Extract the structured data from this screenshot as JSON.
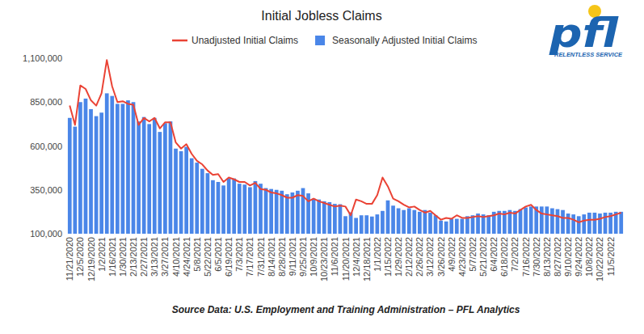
{
  "chart_data": {
    "type": "bar",
    "title": "Initial Jobless Claims",
    "caption": "Source Data: U.S. Employment and Training Administration – PFL Analytics",
    "logo": {
      "text": "pfl",
      "tagline": "RELENTLESS SERVICE"
    },
    "categories": [
      "11/21/2020",
      null,
      "12/5/2020",
      null,
      "12/19/2020",
      null,
      "1/2/2021",
      null,
      "1/16/2021",
      null,
      "1/30/2021",
      null,
      "2/13/2021",
      null,
      "2/27/2021",
      null,
      "3/13/2021",
      null,
      "3/27/2021",
      null,
      "4/10/2021",
      null,
      "4/24/2021",
      null,
      "5/8/2021",
      null,
      "5/22/2021",
      null,
      "6/5/2021",
      null,
      "6/19/2021",
      null,
      "7/3/2021",
      null,
      "7/17/2021",
      null,
      "7/31/2021",
      null,
      "8/14/2021",
      null,
      "8/28/2021",
      null,
      "9/11/2021",
      null,
      "9/25/2021",
      null,
      "10/9/2021",
      null,
      "10/23/2021",
      null,
      "11/6/2021",
      null,
      "11/20/2021",
      null,
      "12/4/2021",
      null,
      "12/18/2021",
      null,
      "1/1/2022",
      null,
      "1/15/2022",
      null,
      "1/29/2022",
      null,
      "2/12/2022",
      null,
      "2/26/2022",
      null,
      "3/12/2022",
      null,
      "3/26/2022",
      null,
      "4/9/2022",
      null,
      "4/23/2022",
      null,
      "5/7/2022",
      null,
      "5/21/2022",
      null,
      "6/4/2022",
      null,
      "6/18/2022",
      null,
      "7/2/2022",
      null,
      "7/16/2022",
      null,
      "7/30/2022",
      null,
      "8/13/2022",
      null,
      "8/27/2022",
      null,
      "9/10/2022",
      null,
      "9/24/2022",
      null,
      "10/8/2022",
      null,
      "10/22/2022",
      null,
      "11/5/2022",
      null,
      null
    ],
    "series": [
      {
        "name": "Unadjusted Initial Claims",
        "type": "line",
        "color": "#ea4335",
        "values": [
          830000,
          720000,
          945000,
          925000,
          860000,
          830000,
          900000,
          1090000,
          940000,
          850000,
          855000,
          840000,
          835000,
          720000,
          760000,
          740000,
          760000,
          700000,
          735000,
          735000,
          620000,
          585000,
          610000,
          555000,
          515000,
          495000,
          460000,
          435000,
          440000,
          395000,
          420000,
          410000,
          395000,
          395000,
          375000,
          390000,
          355000,
          350000,
          335000,
          330000,
          320000,
          305000,
          305000,
          320000,
          315000,
          285000,
          300000,
          285000,
          275000,
          265000,
          255000,
          260000,
          255000,
          205000,
          295000,
          285000,
          270000,
          270000,
          320000,
          420000,
          370000,
          300000,
          285000,
          265000,
          250000,
          255000,
          235000,
          220000,
          230000,
          205000,
          180000,
          190000,
          185000,
          205000,
          190000,
          190000,
          195000,
          200000,
          195000,
          200000,
          205000,
          215000,
          210000,
          220000,
          215000,
          235000,
          255000,
          265000,
          235000,
          215000,
          210000,
          205000,
          200000,
          190000,
          190000,
          180000,
          165000,
          175000,
          180000,
          180000,
          185000,
          195000,
          200000,
          210000,
          220000
        ]
      },
      {
        "name": "Seasonally Adjusted Initial Claims",
        "type": "bar",
        "color": "#4a86e8",
        "values": [
          760000,
          710000,
          850000,
          870000,
          810000,
          770000,
          790000,
          900000,
          885000,
          840000,
          840000,
          860000,
          850000,
          740000,
          765000,
          725000,
          760000,
          680000,
          730000,
          740000,
          585000,
          570000,
          595000,
          530000,
          505000,
          470000,
          445000,
          405000,
          395000,
          375000,
          415000,
          415000,
          385000,
          380000,
          365000,
          400000,
          385000,
          360000,
          355000,
          350000,
          345000,
          325000,
          335000,
          345000,
          360000,
          330000,
          300000,
          295000,
          285000,
          280000,
          270000,
          268000,
          200000,
          222000,
          190000,
          205000,
          205000,
          198000,
          210000,
          230000,
          290000,
          260000,
          245000,
          235000,
          245000,
          235000,
          225000,
          235000,
          220000,
          205000,
          175000,
          170000,
          185000,
          185000,
          185000,
          200000,
          205000,
          215000,
          210000,
          205000,
          225000,
          230000,
          230000,
          235000,
          230000,
          240000,
          250000,
          255000,
          255000,
          255000,
          255000,
          245000,
          240000,
          235000,
          215000,
          210000,
          200000,
          210000,
          220000,
          220000,
          215000,
          220000,
          220000,
          225000,
          225000
        ]
      }
    ],
    "ylim": [
      100000,
      1100000
    ],
    "yticks": [
      {
        "value": 100000,
        "label": "100,000"
      },
      {
        "value": 350000,
        "label": "350,000"
      },
      {
        "value": 600000,
        "label": "600,000"
      },
      {
        "value": 850000,
        "label": "850,000"
      },
      {
        "value": 1100000,
        "label": "1,100,000"
      }
    ],
    "grid": false,
    "legend": "top"
  }
}
